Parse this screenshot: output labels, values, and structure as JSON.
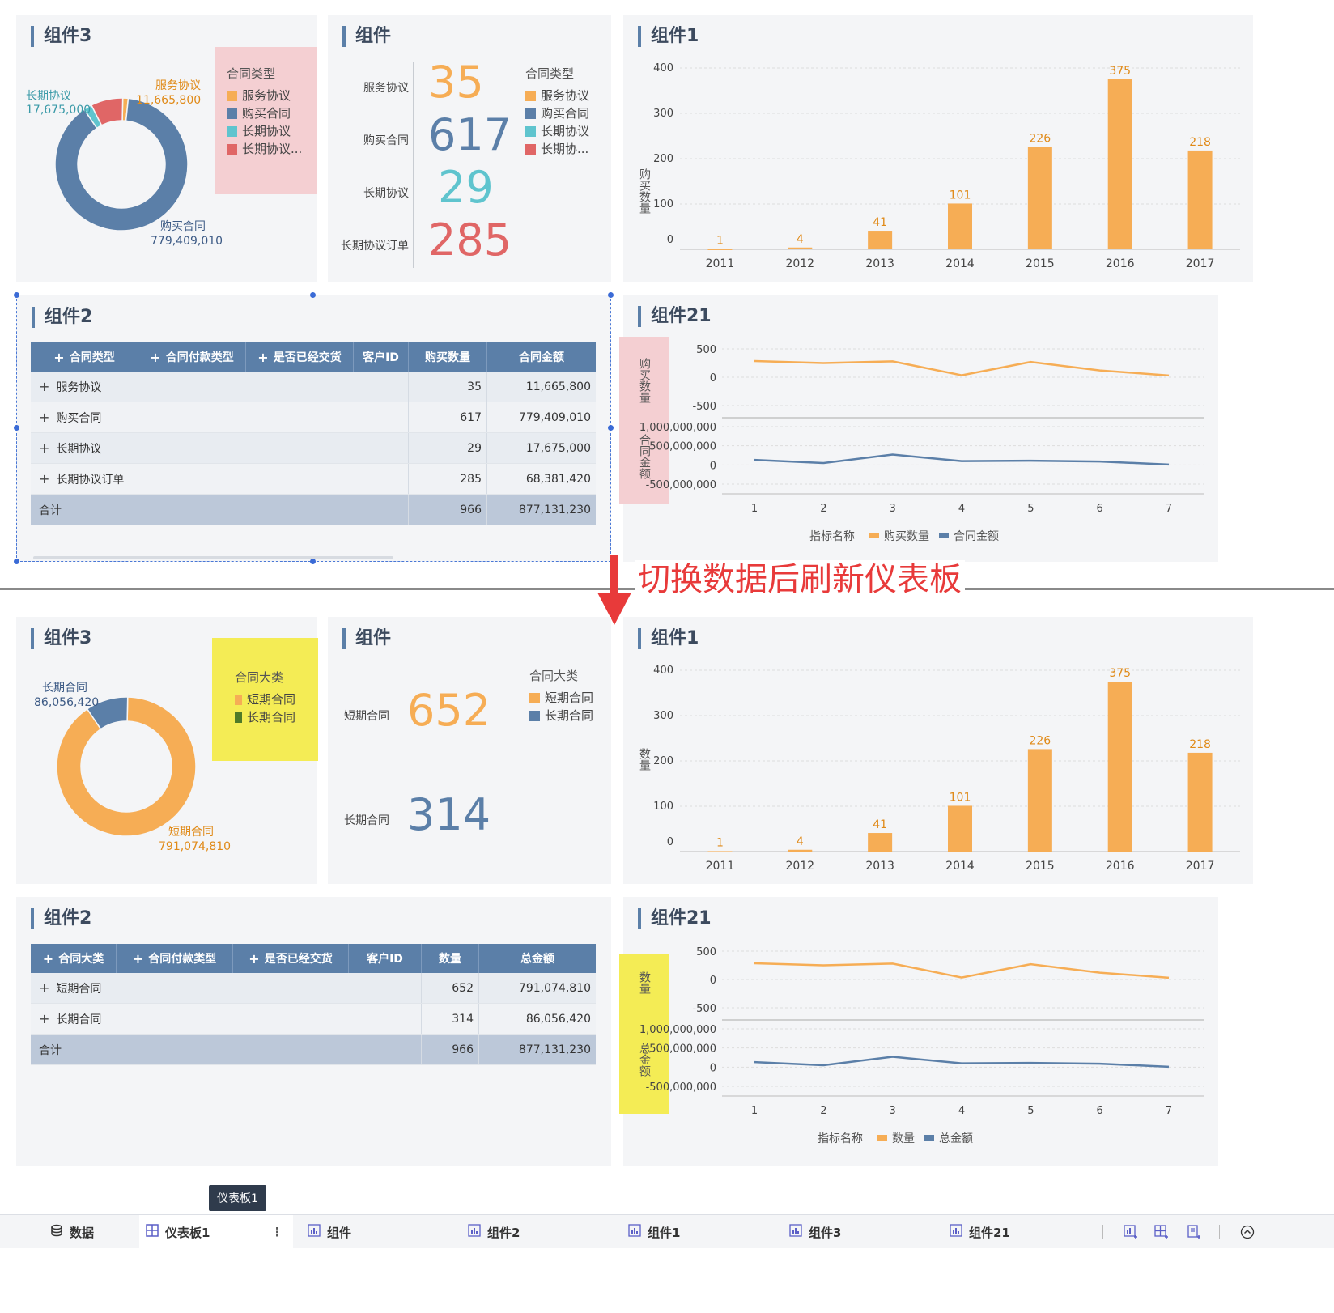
{
  "before": {
    "comp3": {
      "title": "组件3",
      "legend_title": "合同类型",
      "legend": [
        "服务协议",
        "购买合同",
        "长期协议",
        "长期协议..."
      ],
      "labels": {
        "service_name": "服务协议",
        "service_value": "11,665,800",
        "long_name": "长期协议",
        "long_value": "17,675,000",
        "buy_name": "购买合同",
        "buy_value": "779,409,010"
      },
      "slices": [
        11665800,
        779409010,
        17675000,
        68381420
      ]
    },
    "kpi": {
      "title": "组件",
      "legend_title": "合同类型",
      "legend": [
        "服务协议",
        "购买合同",
        "长期协议",
        "长期协..."
      ],
      "items": [
        {
          "label": "服务协议",
          "value": "35"
        },
        {
          "label": "购买合同",
          "value": "617"
        },
        {
          "label": "长期协议",
          "value": "29"
        },
        {
          "label": "长期协议订单",
          "value": "285"
        }
      ]
    },
    "comp1": {
      "title": "组件1",
      "ylabel": "购买数量"
    },
    "comp2": {
      "title": "组件2",
      "headers": [
        "合同类型",
        "合同付款类型",
        "是否已经交货",
        "客户ID",
        "购买数量",
        "合同金额"
      ],
      "rows": [
        {
          "name": "服务协议",
          "qty": "35",
          "amt": "11,665,800"
        },
        {
          "name": "购买合同",
          "qty": "617",
          "amt": "779,409,010"
        },
        {
          "name": "长期协议",
          "qty": "29",
          "amt": "17,675,000"
        },
        {
          "name": "长期协议订单",
          "qty": "285",
          "amt": "68,381,420"
        }
      ],
      "total": {
        "name": "合计",
        "qty": "966",
        "amt": "877,131,230"
      }
    },
    "comp21": {
      "title": "组件21",
      "ylabel_top": "购买数量",
      "ylabel_bottom": "合同金额",
      "legend_title": "指标名称",
      "legend": [
        "购买数量",
        "合同金额"
      ]
    }
  },
  "annotation": "切换数据后刷新仪表板",
  "after": {
    "comp3": {
      "title": "组件3",
      "legend_title": "合同大类",
      "legend": [
        "短期合同",
        "长期合同"
      ],
      "labels": {
        "long_name": "长期合同",
        "long_value": "86,056,420",
        "short_name": "短期合同",
        "short_value": "791,074,810"
      },
      "slices": [
        791074810,
        86056420
      ]
    },
    "kpi": {
      "title": "组件",
      "legend_title": "合同大类",
      "legend": [
        "短期合同",
        "长期合同"
      ],
      "items": [
        {
          "label": "短期合同",
          "value": "652"
        },
        {
          "label": "长期合同",
          "value": "314"
        }
      ]
    },
    "comp1": {
      "title": "组件1",
      "ylabel": "数量"
    },
    "comp2": {
      "title": "组件2",
      "headers": [
        "合同大类",
        "合同付款类型",
        "是否已经交货",
        "客户ID",
        "数量",
        "总金额"
      ],
      "rows": [
        {
          "name": "短期合同",
          "qty": "652",
          "amt": "791,074,810"
        },
        {
          "name": "长期合同",
          "qty": "314",
          "amt": "86,056,420"
        }
      ],
      "total": {
        "name": "合计",
        "qty": "966",
        "amt": "877,131,230"
      }
    },
    "comp21": {
      "title": "组件21",
      "ylabel_top": "数量",
      "ylabel_bottom": "总金额",
      "legend_title": "指标名称",
      "legend": [
        "数量",
        "总金额"
      ]
    }
  },
  "colors": {
    "orange": "#f6ad55",
    "blue": "#5b7fa8",
    "teal": "#5fc4ce",
    "red": "#e06666",
    "dark_green": "#4f7a28",
    "pink_highlight": "#f4cfd2",
    "yellow_highlight": "#f4ec55",
    "annotation_red": "#e83a3a"
  },
  "chart_data": [
    {
      "type": "bar",
      "name_ref": "comp1",
      "categories": [
        "2011",
        "2012",
        "2013",
        "2014",
        "2015",
        "2016",
        "2017"
      ],
      "values": [
        1,
        4,
        41,
        101,
        226,
        375,
        218
      ],
      "yticks": [
        "400",
        "300",
        "200",
        "100",
        "0"
      ],
      "ylim": [
        0,
        400
      ]
    },
    {
      "type": "line",
      "name_ref": "comp21",
      "x": [
        "1",
        "2",
        "3",
        "4",
        "5",
        "6",
        "7"
      ],
      "top_yticks": [
        "500",
        "0",
        "-500"
      ],
      "bottom_yticks": [
        "1,000,000,000",
        "500,000,000",
        "0",
        "-500,000,000"
      ],
      "series": [
        {
          "values": [
            285,
            250,
            280,
            35,
            270,
            120,
            30
          ],
          "ylim": [
            -500,
            500
          ]
        },
        {
          "values": [
            130000000,
            50000000,
            270000000,
            100000000,
            110000000,
            90000000,
            10000000
          ],
          "ylim": [
            -500000000,
            1000000000
          ]
        }
      ]
    }
  ],
  "tabs": {
    "data": "数据",
    "dashboard": "仪表板1",
    "t1": "组件",
    "t2": "组件2",
    "t3": "组件1",
    "t4": "组件3",
    "t5": "组件21",
    "tooltip": "仪表板1"
  }
}
